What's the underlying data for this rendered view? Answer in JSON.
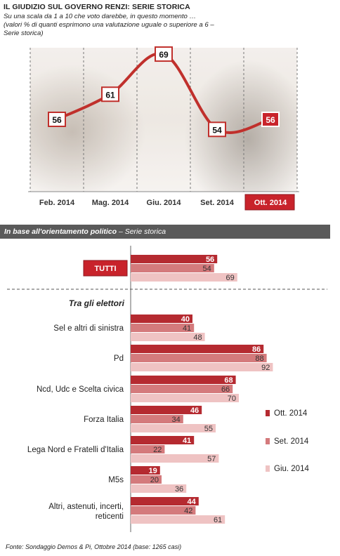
{
  "header": {
    "title": "IL GIUDIZIO SUL GOVERNO RENZI: SERIE STORICA",
    "subtitle_lines": [
      "Su una scala da 1 a 10 che voto darebbe, in questo momento …",
      "(valori % di quanti esprimono una valutazione uguale o superiore a 6 –",
      "Serie storica)"
    ]
  },
  "section": {
    "label_bold": "In base all'orientamento politico",
    "label_rest": " – Serie storica"
  },
  "footer": "Fonte: Sondaggio Demos & Pi, Ottobre 2014 (base: 1265 casi)",
  "colors": {
    "ott": "#b52a30",
    "set": "#d47a7c",
    "giu": "#efc3c3",
    "line": "#c0302c",
    "highlight": "#c8232b"
  },
  "chart_data": [
    {
      "type": "line",
      "categories": [
        "Feb. 2014",
        "Mag. 2014",
        "Giu. 2014",
        "Set. 2014",
        "Ott. 2014"
      ],
      "values": [
        56,
        61,
        69,
        54,
        56
      ],
      "highlight_category": "Ott. 2014"
    },
    {
      "type": "bar",
      "orientation": "horizontal",
      "total_label": "TUTTI",
      "group_heading": "Tra gli elettori",
      "categories": [
        "Sel e altri di sinistra",
        "Pd",
        "Ncd, Udc e Scelta civica",
        "Forza Italia",
        "Lega Nord e Fratelli d'Italia",
        "M5s",
        "Altri, astenuti, incerti, reticenti"
      ],
      "total": {
        "Ott. 2014": 56,
        "Set. 2014": 54,
        "Giu. 2014": 69
      },
      "series": [
        {
          "name": "Ott. 2014",
          "values": [
            40,
            86,
            68,
            46,
            41,
            19,
            44
          ]
        },
        {
          "name": "Set. 2014",
          "values": [
            41,
            88,
            66,
            34,
            22,
            20,
            42
          ]
        },
        {
          "name": "Giu. 2014",
          "values": [
            48,
            92,
            70,
            55,
            57,
            36,
            61
          ]
        }
      ],
      "legend": [
        "Ott. 2014",
        "Set. 2014",
        "Giu. 2014"
      ]
    }
  ]
}
